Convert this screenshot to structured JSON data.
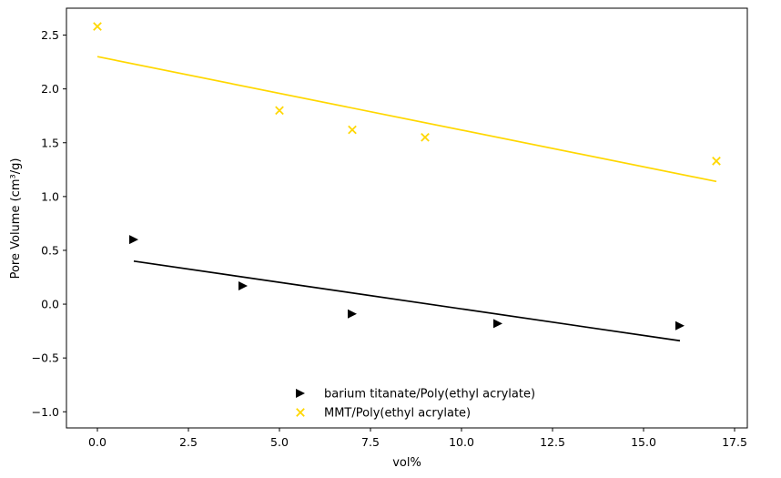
{
  "chart_data": {
    "type": "scatter",
    "xlabel": "vol%",
    "ylabel": "Pore Volume (cm³/g)",
    "xlim": [
      -0.85,
      17.85
    ],
    "ylim": [
      -1.15,
      2.75
    ],
    "xticks": [
      0.0,
      2.5,
      5.0,
      7.5,
      10.0,
      12.5,
      15.0,
      17.5
    ],
    "xtick_labels": [
      "0.0",
      "2.5",
      "5.0",
      "7.5",
      "10.0",
      "12.5",
      "15.0",
      "17.5"
    ],
    "yticks": [
      -1.0,
      -0.5,
      0.0,
      0.5,
      1.0,
      1.5,
      2.0,
      2.5
    ],
    "ytick_labels": [
      "−1.0",
      "−0.5",
      "0.0",
      "0.5",
      "1.0",
      "1.5",
      "2.0",
      "2.5"
    ],
    "grid": false,
    "legend_position": "bottom-center",
    "series": [
      {
        "name": "barium titanate/Poly(ethyl acrylate)",
        "marker": "triangle-right",
        "color": "#000000",
        "points": [
          {
            "x": 1,
            "y": 0.6
          },
          {
            "x": 4,
            "y": 0.17
          },
          {
            "x": 7,
            "y": -0.09
          },
          {
            "x": 11,
            "y": -0.18
          },
          {
            "x": 16,
            "y": -0.2
          }
        ],
        "fit": {
          "x": [
            1,
            16
          ],
          "y": [
            0.4,
            -0.34
          ]
        }
      },
      {
        "name": "MMT/Poly(ethyl acrylate)",
        "marker": "x",
        "color": "#FFD700",
        "points": [
          {
            "x": 0,
            "y": 2.58
          },
          {
            "x": 5,
            "y": 1.8
          },
          {
            "x": 7,
            "y": 1.62
          },
          {
            "x": 9,
            "y": 1.55
          },
          {
            "x": 17,
            "y": 1.33
          }
        ],
        "fit": {
          "x": [
            0,
            17
          ],
          "y": [
            2.3,
            1.14
          ]
        }
      }
    ]
  }
}
